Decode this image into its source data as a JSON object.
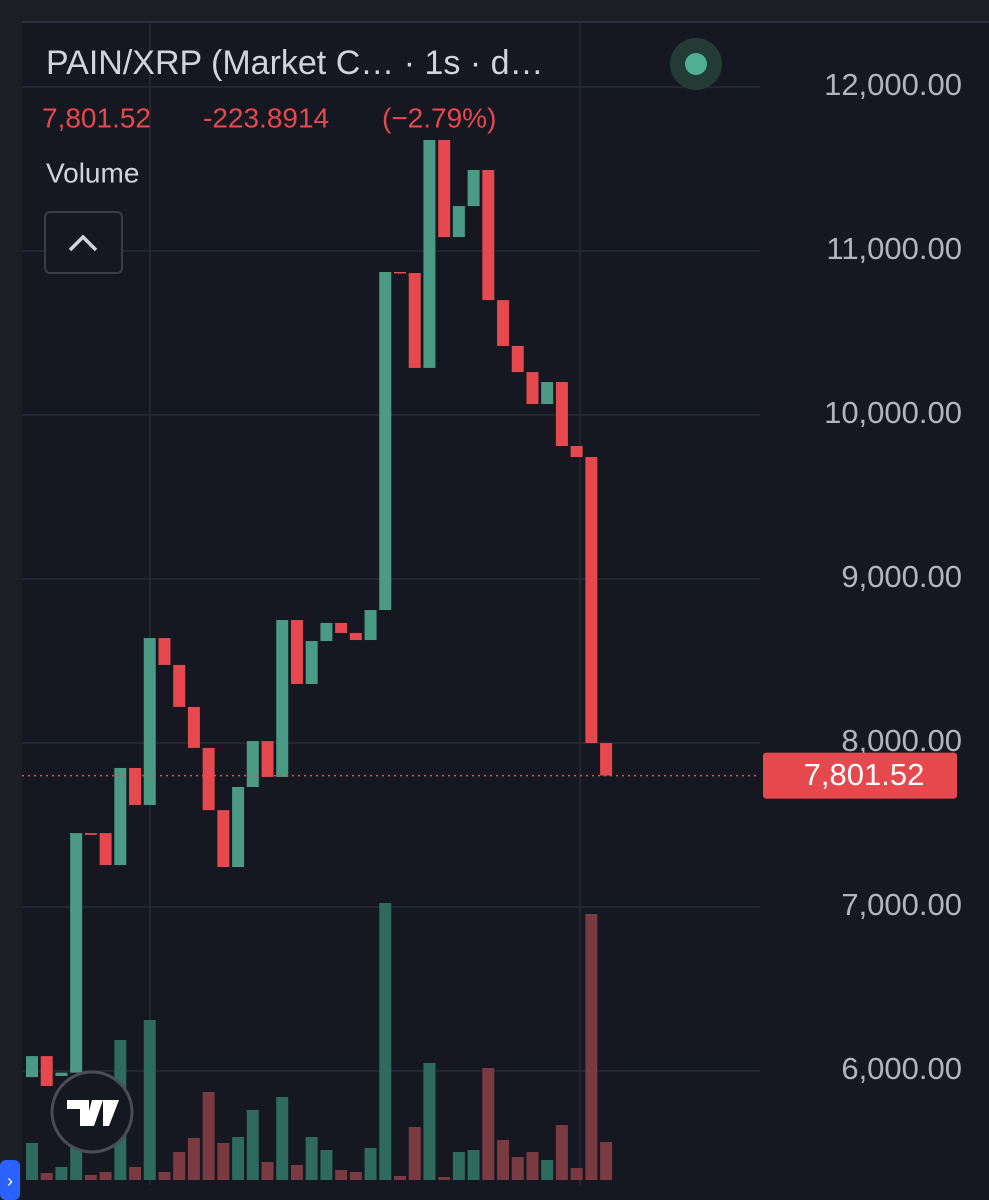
{
  "chart_data": {
    "type": "candlestick",
    "title": "PAIN/XRP (Market C…  · 1s · d…",
    "last_price": {
      "value": 7801.52,
      "label": "7,801.52"
    },
    "change": -223.8914,
    "change_pct": {
      "value": -2.79,
      "label": "(−2.79%)"
    },
    "volume_label": "Volume",
    "up_color": "#4a9a85",
    "down_color": "#e5484d",
    "up_volume_color": "#2e6a5d",
    "down_volume_color": "#7a3a41",
    "open": [
      5963,
      6091,
      5970,
      5990,
      7451,
      7451,
      7256,
      7848,
      7622,
      8640,
      8476,
      8220,
      7970,
      7591,
      7244,
      7732,
      8012,
      7793,
      8750,
      8360,
      8622,
      8732,
      8671,
      8628,
      8811,
      10872,
      10866,
      10287,
      11677,
      11085,
      11274,
      11494,
      10701,
      10421,
      10262,
      10067,
      10201,
      9811,
      9744,
      8000
    ],
    "close": [
      6091,
      5909,
      5990,
      7451,
      7440,
      7256,
      7848,
      7622,
      8640,
      8476,
      8220,
      7970,
      7591,
      7244,
      7732,
      8012,
      7793,
      8750,
      8360,
      8622,
      8732,
      8671,
      8628,
      8811,
      10872,
      10866,
      10287,
      11677,
      11085,
      11274,
      11494,
      10701,
      10421,
      10262,
      10067,
      10201,
      9811,
      9744,
      8000,
      7801.52
    ],
    "volume": [
      37,
      7,
      13,
      100,
      5,
      8,
      140,
      13,
      160,
      8,
      28,
      42,
      88,
      37,
      43,
      70,
      18,
      83,
      15,
      43,
      30,
      10,
      8,
      32,
      277,
      4,
      53,
      117,
      3,
      28,
      30,
      112,
      40,
      23,
      28,
      20,
      55,
      12,
      266,
      38
    ],
    "ylim": [
      5310,
      12400
    ],
    "yticks": [
      {
        "value": 6000,
        "label": "6,000.00"
      },
      {
        "value": 7000,
        "label": "7,000.00"
      },
      {
        "value": 8000,
        "label": "8,000.00"
      },
      {
        "value": 9000,
        "label": "9,000.00"
      },
      {
        "value": 10000,
        "label": "10,000.00"
      },
      {
        "value": 11000,
        "label": "11,000.00"
      },
      {
        "value": 12000,
        "label": "12,000.00"
      }
    ],
    "grid": true
  }
}
